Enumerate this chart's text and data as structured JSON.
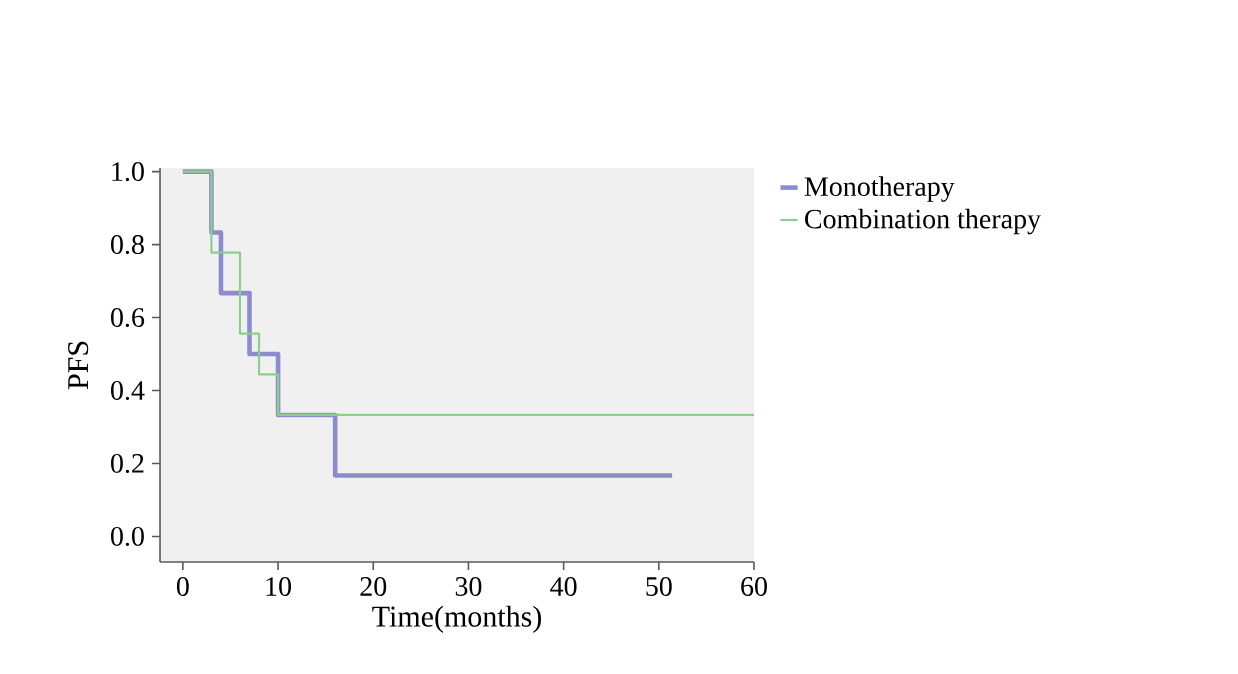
{
  "chart_data": {
    "type": "step",
    "xlabel": "Time(months)",
    "ylabel": "PFS",
    "series": [
      {
        "name": "Monotherapy",
        "color": "#8a8ccc",
        "x": [
          0,
          3,
          4,
          7,
          10,
          16,
          51.4
        ],
        "values": [
          1,
          0.833,
          0.667,
          0.5,
          0.333,
          0.167,
          0.167
        ]
      },
      {
        "name": "Combination therapy",
        "color": "#8ccf8c",
        "x": [
          0,
          3,
          6,
          8,
          10,
          60
        ],
        "values": [
          1,
          0.778,
          0.556,
          0.444,
          0.333,
          0.333
        ]
      }
    ],
    "xlim": [
      -2.4,
      60
    ],
    "ylim": [
      -0.07,
      1.01
    ],
    "xticks": [
      0,
      10,
      20,
      30,
      40,
      50,
      60
    ],
    "yticks": [
      {
        "value": 0,
        "label": "0.0"
      },
      {
        "value": 0.2,
        "label": "0.2"
      },
      {
        "value": 0.4,
        "label": "0.4"
      },
      {
        "value": 0.6,
        "label": "0.6"
      },
      {
        "value": 0.8,
        "label": "0.8"
      },
      {
        "value": 1,
        "label": "1.0"
      }
    ],
    "legend": "right",
    "grid": false
  }
}
